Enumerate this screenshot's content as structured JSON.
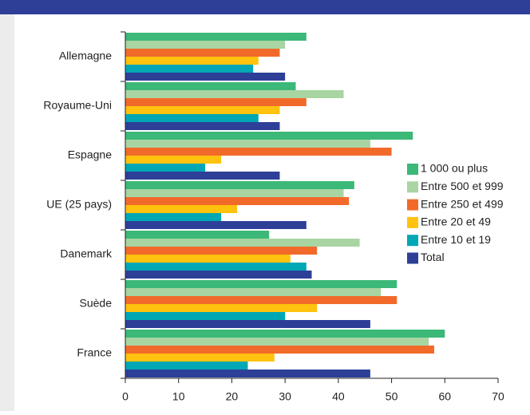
{
  "chart_data": {
    "type": "hbar",
    "categories": [
      "Allemagne",
      "Royaume-Uni",
      "Espagne",
      "UE (25 pays)",
      "Danemark",
      "Suède",
      "France"
    ],
    "series": [
      {
        "name": "1 000 ou plus",
        "color": "#3cb878",
        "values": [
          34,
          32,
          54,
          43,
          27,
          51,
          60
        ]
      },
      {
        "name": "Entre 500 et 999",
        "color": "#a8d5a2",
        "values": [
          30,
          41,
          46,
          41,
          44,
          48,
          57
        ]
      },
      {
        "name": "Entre 250 et 499",
        "color": "#f26a2a",
        "values": [
          29,
          34,
          50,
          42,
          36,
          51,
          58
        ]
      },
      {
        "name": "Entre 20 et 49",
        "color": "#ffc20e",
        "values": [
          25,
          29,
          18,
          21,
          31,
          36,
          28
        ]
      },
      {
        "name": "Entre 10 et 19",
        "color": "#00a7b5",
        "values": [
          24,
          25,
          15,
          18,
          34,
          30,
          23
        ]
      },
      {
        "name": "Total",
        "color": "#2e3f98",
        "values": [
          30,
          29,
          29,
          34,
          35,
          46,
          46
        ]
      }
    ],
    "xlim": [
      0,
      70
    ],
    "xticks": [
      0,
      10,
      20,
      30,
      40,
      50,
      60,
      70
    ],
    "legend": "right"
  }
}
